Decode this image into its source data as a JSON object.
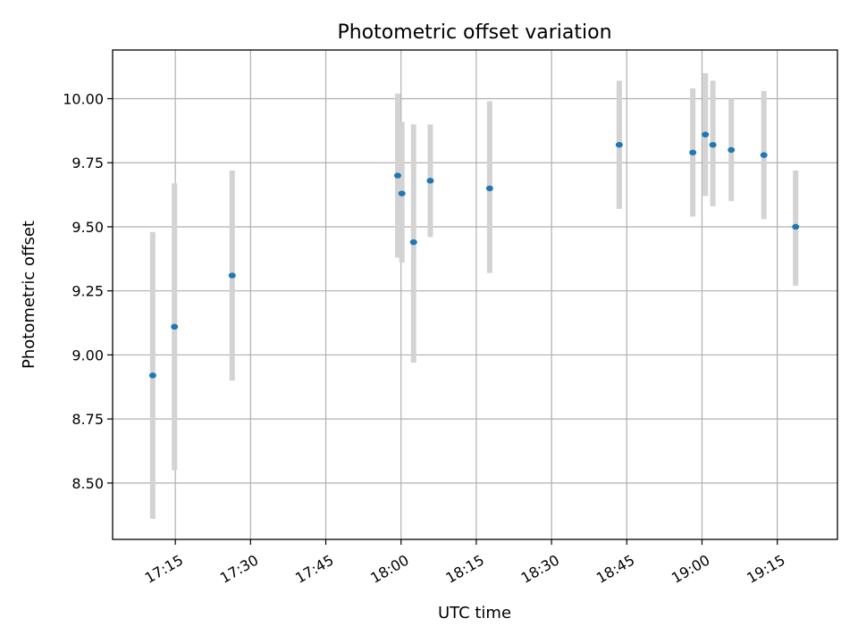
{
  "chart_data": {
    "type": "scatter",
    "title": "Photometric offset variation",
    "xlabel": "UTC time",
    "ylabel": "Photometric offset",
    "xlim": [
      "17:02:30",
      "19:27:00"
    ],
    "ylim": [
      8.28,
      10.19
    ],
    "grid": true,
    "x_ticks": [
      "17:15",
      "17:30",
      "17:45",
      "18:00",
      "18:15",
      "18:30",
      "18:45",
      "19:00",
      "19:15"
    ],
    "y_ticks": [
      "8.50",
      "8.75",
      "9.00",
      "9.25",
      "9.50",
      "9.75",
      "10.00"
    ],
    "colors": {
      "marker": "#1f77b4",
      "errorbar": "#d3d3d3",
      "grid": "#b0b0b0"
    },
    "series": [
      {
        "points": [
          {
            "x": "17:10:30",
            "y": 8.92,
            "ylow": 8.36,
            "yhigh": 9.48
          },
          {
            "x": "17:14:50",
            "y": 9.11,
            "ylow": 8.55,
            "yhigh": 9.67
          },
          {
            "x": "17:26:20",
            "y": 9.31,
            "ylow": 8.9,
            "yhigh": 9.72
          },
          {
            "x": "17:59:20",
            "y": 9.7,
            "ylow": 9.38,
            "yhigh": 10.02
          },
          {
            "x": "18:00:10",
            "y": 9.63,
            "ylow": 9.36,
            "yhigh": 9.91
          },
          {
            "x": "18:02:30",
            "y": 9.44,
            "ylow": 8.97,
            "yhigh": 9.9
          },
          {
            "x": "18:05:50",
            "y": 9.68,
            "ylow": 9.46,
            "yhigh": 9.9
          },
          {
            "x": "18:17:40",
            "y": 9.65,
            "ylow": 9.32,
            "yhigh": 9.99
          },
          {
            "x": "18:43:30",
            "y": 9.82,
            "ylow": 9.57,
            "yhigh": 10.07
          },
          {
            "x": "18:58:10",
            "y": 9.79,
            "ylow": 9.54,
            "yhigh": 10.04
          },
          {
            "x": "19:00:40",
            "y": 9.86,
            "ylow": 9.62,
            "yhigh": 10.1
          },
          {
            "x": "19:02:10",
            "y": 9.82,
            "ylow": 9.58,
            "yhigh": 10.07
          },
          {
            "x": "19:05:50",
            "y": 9.8,
            "ylow": 9.6,
            "yhigh": 10.0
          },
          {
            "x": "19:12:20",
            "y": 9.78,
            "ylow": 9.53,
            "yhigh": 10.03
          },
          {
            "x": "19:18:40",
            "y": 9.5,
            "ylow": 9.27,
            "yhigh": 9.72
          }
        ]
      }
    ]
  }
}
